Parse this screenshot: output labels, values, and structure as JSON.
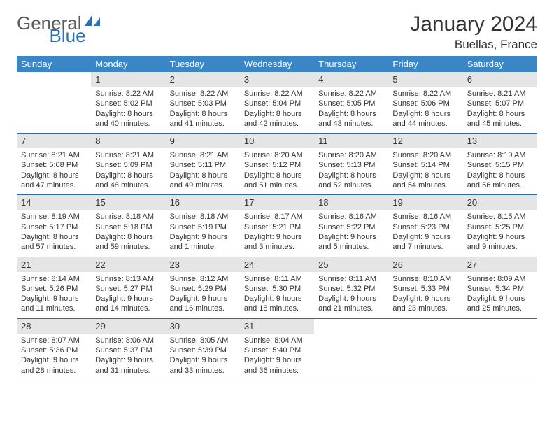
{
  "logo": {
    "text1": "General",
    "text2": "Blue"
  },
  "title": "January 2024",
  "location": "Buellas, France",
  "colors": {
    "header_bg": "#3b86c6",
    "row_divider": "#2a6aa8",
    "daynum_bg": "#e5e5e5",
    "text": "#333333",
    "logo_gray": "#5a5a5a",
    "logo_blue": "#2a72b5"
  },
  "weekdays": [
    "Sunday",
    "Monday",
    "Tuesday",
    "Wednesday",
    "Thursday",
    "Friday",
    "Saturday"
  ],
  "weeks": [
    [
      {
        "n": "",
        "t": ""
      },
      {
        "n": "1",
        "t": "Sunrise: 8:22 AM\nSunset: 5:02 PM\nDaylight: 8 hours and 40 minutes."
      },
      {
        "n": "2",
        "t": "Sunrise: 8:22 AM\nSunset: 5:03 PM\nDaylight: 8 hours and 41 minutes."
      },
      {
        "n": "3",
        "t": "Sunrise: 8:22 AM\nSunset: 5:04 PM\nDaylight: 8 hours and 42 minutes."
      },
      {
        "n": "4",
        "t": "Sunrise: 8:22 AM\nSunset: 5:05 PM\nDaylight: 8 hours and 43 minutes."
      },
      {
        "n": "5",
        "t": "Sunrise: 8:22 AM\nSunset: 5:06 PM\nDaylight: 8 hours and 44 minutes."
      },
      {
        "n": "6",
        "t": "Sunrise: 8:21 AM\nSunset: 5:07 PM\nDaylight: 8 hours and 45 minutes."
      }
    ],
    [
      {
        "n": "7",
        "t": "Sunrise: 8:21 AM\nSunset: 5:08 PM\nDaylight: 8 hours and 47 minutes."
      },
      {
        "n": "8",
        "t": "Sunrise: 8:21 AM\nSunset: 5:09 PM\nDaylight: 8 hours and 48 minutes."
      },
      {
        "n": "9",
        "t": "Sunrise: 8:21 AM\nSunset: 5:11 PM\nDaylight: 8 hours and 49 minutes."
      },
      {
        "n": "10",
        "t": "Sunrise: 8:20 AM\nSunset: 5:12 PM\nDaylight: 8 hours and 51 minutes."
      },
      {
        "n": "11",
        "t": "Sunrise: 8:20 AM\nSunset: 5:13 PM\nDaylight: 8 hours and 52 minutes."
      },
      {
        "n": "12",
        "t": "Sunrise: 8:20 AM\nSunset: 5:14 PM\nDaylight: 8 hours and 54 minutes."
      },
      {
        "n": "13",
        "t": "Sunrise: 8:19 AM\nSunset: 5:15 PM\nDaylight: 8 hours and 56 minutes."
      }
    ],
    [
      {
        "n": "14",
        "t": "Sunrise: 8:19 AM\nSunset: 5:17 PM\nDaylight: 8 hours and 57 minutes."
      },
      {
        "n": "15",
        "t": "Sunrise: 8:18 AM\nSunset: 5:18 PM\nDaylight: 8 hours and 59 minutes."
      },
      {
        "n": "16",
        "t": "Sunrise: 8:18 AM\nSunset: 5:19 PM\nDaylight: 9 hours and 1 minute."
      },
      {
        "n": "17",
        "t": "Sunrise: 8:17 AM\nSunset: 5:21 PM\nDaylight: 9 hours and 3 minutes."
      },
      {
        "n": "18",
        "t": "Sunrise: 8:16 AM\nSunset: 5:22 PM\nDaylight: 9 hours and 5 minutes."
      },
      {
        "n": "19",
        "t": "Sunrise: 8:16 AM\nSunset: 5:23 PM\nDaylight: 9 hours and 7 minutes."
      },
      {
        "n": "20",
        "t": "Sunrise: 8:15 AM\nSunset: 5:25 PM\nDaylight: 9 hours and 9 minutes."
      }
    ],
    [
      {
        "n": "21",
        "t": "Sunrise: 8:14 AM\nSunset: 5:26 PM\nDaylight: 9 hours and 11 minutes."
      },
      {
        "n": "22",
        "t": "Sunrise: 8:13 AM\nSunset: 5:27 PM\nDaylight: 9 hours and 14 minutes."
      },
      {
        "n": "23",
        "t": "Sunrise: 8:12 AM\nSunset: 5:29 PM\nDaylight: 9 hours and 16 minutes."
      },
      {
        "n": "24",
        "t": "Sunrise: 8:11 AM\nSunset: 5:30 PM\nDaylight: 9 hours and 18 minutes."
      },
      {
        "n": "25",
        "t": "Sunrise: 8:11 AM\nSunset: 5:32 PM\nDaylight: 9 hours and 21 minutes."
      },
      {
        "n": "26",
        "t": "Sunrise: 8:10 AM\nSunset: 5:33 PM\nDaylight: 9 hours and 23 minutes."
      },
      {
        "n": "27",
        "t": "Sunrise: 8:09 AM\nSunset: 5:34 PM\nDaylight: 9 hours and 25 minutes."
      }
    ],
    [
      {
        "n": "28",
        "t": "Sunrise: 8:07 AM\nSunset: 5:36 PM\nDaylight: 9 hours and 28 minutes."
      },
      {
        "n": "29",
        "t": "Sunrise: 8:06 AM\nSunset: 5:37 PM\nDaylight: 9 hours and 31 minutes."
      },
      {
        "n": "30",
        "t": "Sunrise: 8:05 AM\nSunset: 5:39 PM\nDaylight: 9 hours and 33 minutes."
      },
      {
        "n": "31",
        "t": "Sunrise: 8:04 AM\nSunset: 5:40 PM\nDaylight: 9 hours and 36 minutes."
      },
      {
        "n": "",
        "t": ""
      },
      {
        "n": "",
        "t": ""
      },
      {
        "n": "",
        "t": ""
      }
    ]
  ]
}
